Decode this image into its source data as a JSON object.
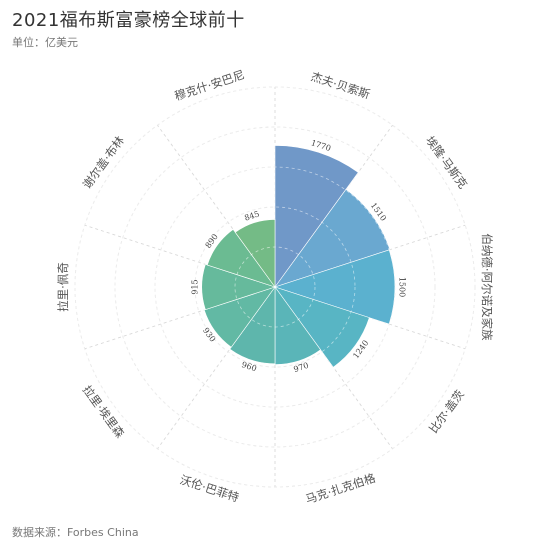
{
  "title": "2021福布斯富豪榜全球前十",
  "subtitle": "单位：亿美元",
  "source": "数据来源：Forbes China",
  "chart_data": {
    "type": "nightingale-rose",
    "title": "2021福布斯富豪榜全球前十",
    "unit": "亿美元",
    "categories": [
      "杰夫·贝索斯",
      "埃隆·马斯克",
      "伯纳德·阿尔诺及家族",
      "比尔·盖茨",
      "马克·扎克伯格",
      "沃伦·巴菲特",
      "拉里·埃里森",
      "拉里·佩奇",
      "谢尔盖·布林",
      "穆克什·安巴尼"
    ],
    "values": [
      1770,
      1510,
      1500,
      1240,
      970,
      960,
      930,
      915,
      890,
      845
    ],
    "value_labels": [
      "1770",
      "1510",
      "1500",
      "1240",
      "970",
      "960",
      "930",
      "915",
      "890",
      "845"
    ],
    "rlim": [
      0,
      2500
    ],
    "grid": true,
    "colors": [
      "#7098c8",
      "#6aa8d0",
      "#5bb1cf",
      "#58b5c4",
      "#5ab5b8",
      "#5eb6ac",
      "#62b9a4",
      "#66ba9c",
      "#6bbb92",
      "#74bb86"
    ]
  }
}
